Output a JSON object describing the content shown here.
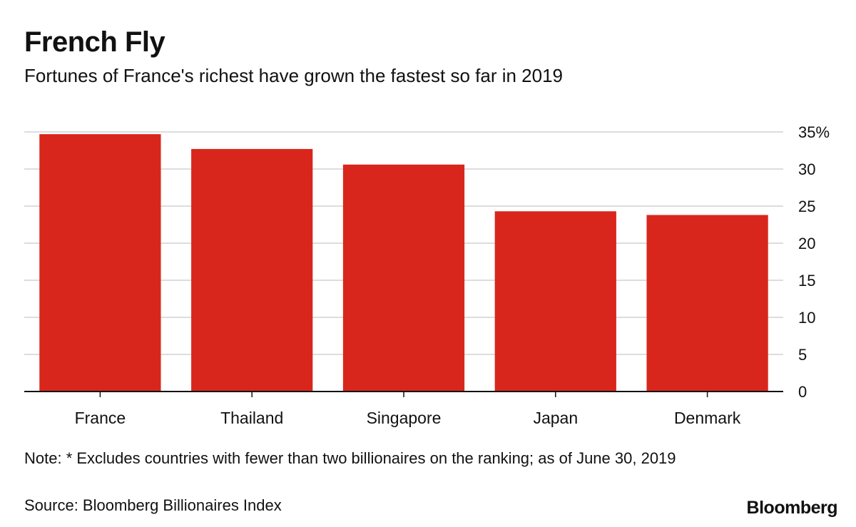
{
  "title": "French Fly",
  "subtitle": "Fortunes of France's richest have grown the fastest so far in 2019",
  "note": "Note: * Excludes countries with fewer than two billionaires on the ranking; as of June 30, 2019",
  "source": "Source: Bloomberg Billionaires Index",
  "logo": "Bloomberg",
  "colors": {
    "bar": "#d9261c",
    "grid": "#dddddd",
    "axis": "#111111",
    "text": "#111111"
  },
  "chart_data": {
    "type": "bar",
    "categories": [
      "France",
      "Thailand",
      "Singapore",
      "Japan",
      "Denmark"
    ],
    "values": [
      34.7,
      32.7,
      30.6,
      24.3,
      23.8
    ],
    "ylim": [
      0,
      35
    ],
    "yticks": [
      0,
      5,
      10,
      15,
      20,
      25,
      30,
      35
    ],
    "ytick_labels": [
      "0",
      "5",
      "10",
      "15",
      "20",
      "25",
      "30",
      "35%"
    ],
    "y_axis_position": "right",
    "grid": true,
    "legend": "none"
  }
}
